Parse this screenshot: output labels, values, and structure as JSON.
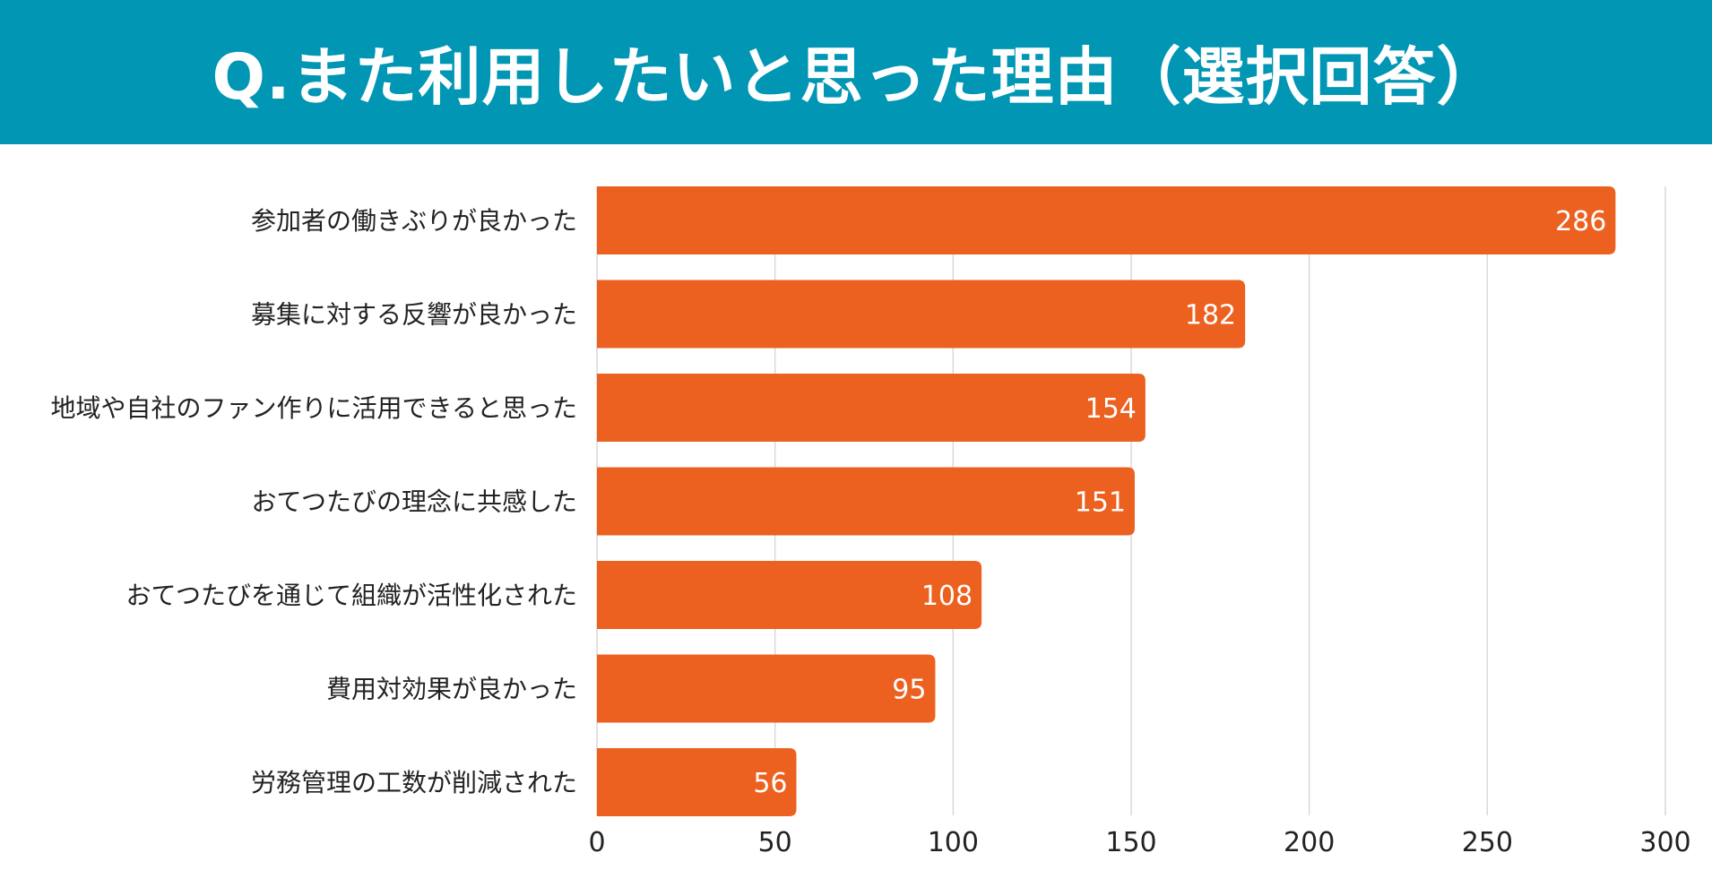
{
  "header": {
    "title": "Q.また利用したいと思った理由（選択回答）"
  },
  "colors": {
    "header_bg": "#0096b4",
    "bar": "#ec6120",
    "grid": "#d9d9d9",
    "axis_text": "#222222",
    "value_text": "#ffffff"
  },
  "chart_data": {
    "type": "bar",
    "orientation": "horizontal",
    "title": "Q.また利用したいと思った理由（選択回答）",
    "xlabel": "",
    "ylabel": "",
    "categories": [
      "参加者の働きぶりが良かった",
      "募集に対する反響が良かった",
      "地域や自社のファン作りに活用できると思った",
      "おてつたびの理念に共感した",
      "おてつたびを通じて組織が活性化された",
      "費用対効果が良かった",
      "労務管理の工数が削減された"
    ],
    "values": [
      286,
      182,
      154,
      151,
      108,
      95,
      56
    ],
    "xlim": [
      0,
      300
    ],
    "xticks": [
      0,
      50,
      100,
      150,
      200,
      250,
      300
    ],
    "grid": true,
    "legend": "none",
    "data_labels": true
  }
}
